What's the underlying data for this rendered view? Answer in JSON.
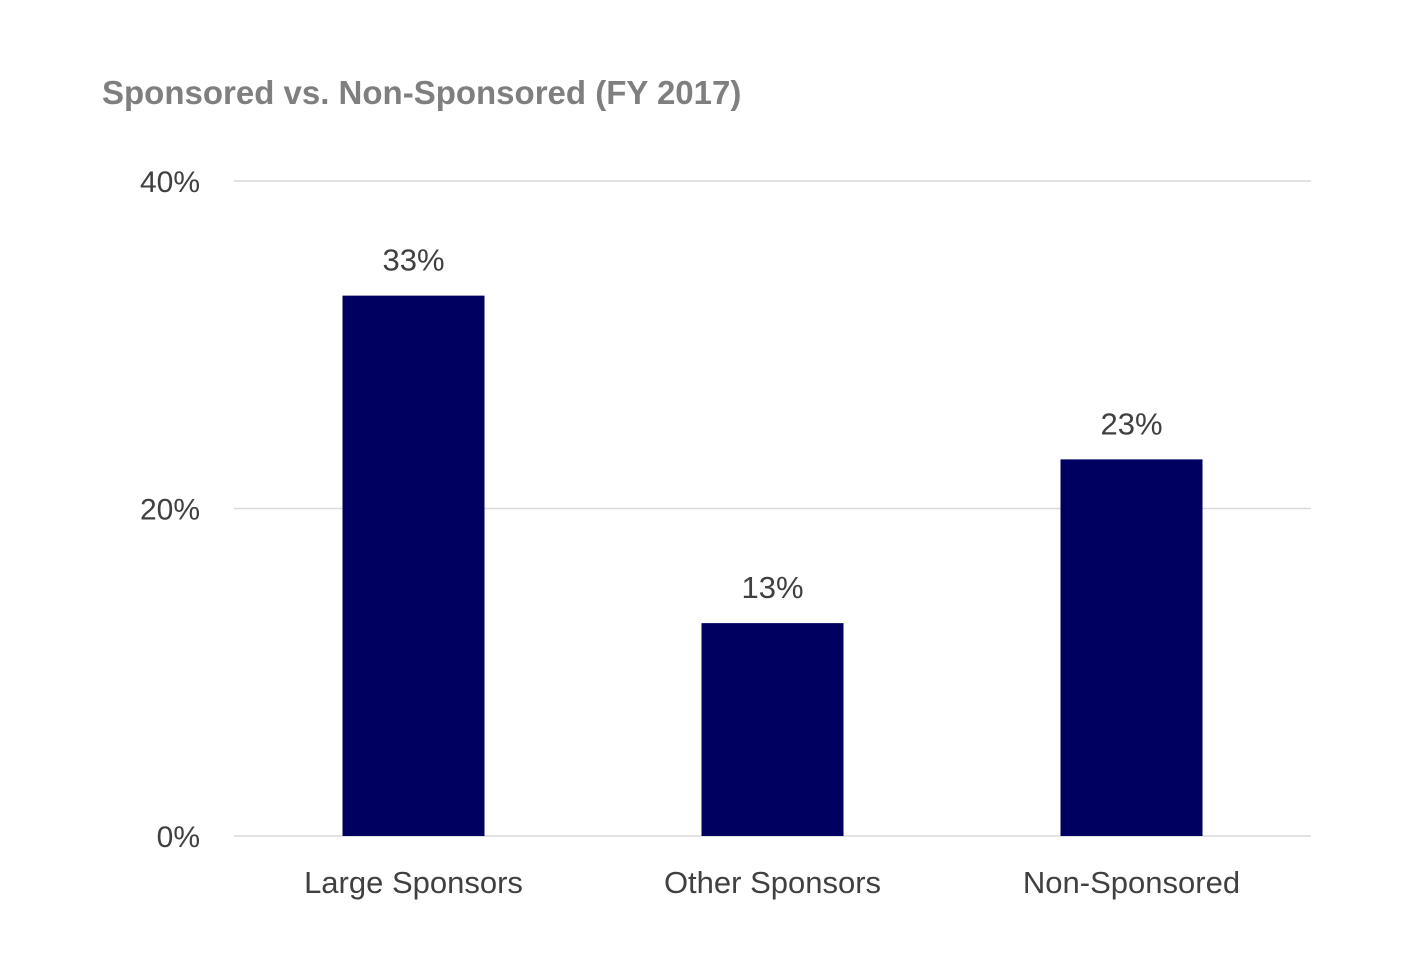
{
  "chart_data": {
    "type": "bar",
    "title": "Sponsored vs. Non-Sponsored (FY 2017)",
    "categories": [
      "Large Sponsors",
      "Other Sponsors",
      "Non-Sponsored"
    ],
    "values": [
      33,
      13,
      23
    ],
    "data_labels": [
      "33%",
      "13%",
      "23%"
    ],
    "ylim": [
      0,
      40
    ],
    "y_ticks": [
      0,
      20,
      40
    ],
    "y_tick_labels": [
      "0%",
      "20%",
      "40%"
    ],
    "xlabel": "",
    "ylabel": "",
    "grid": true,
    "legend": "none",
    "bar_color": "#000060",
    "title_color": "#7f7f7f",
    "text_color": "#404040",
    "grid_color": "#d9d9d9"
  }
}
